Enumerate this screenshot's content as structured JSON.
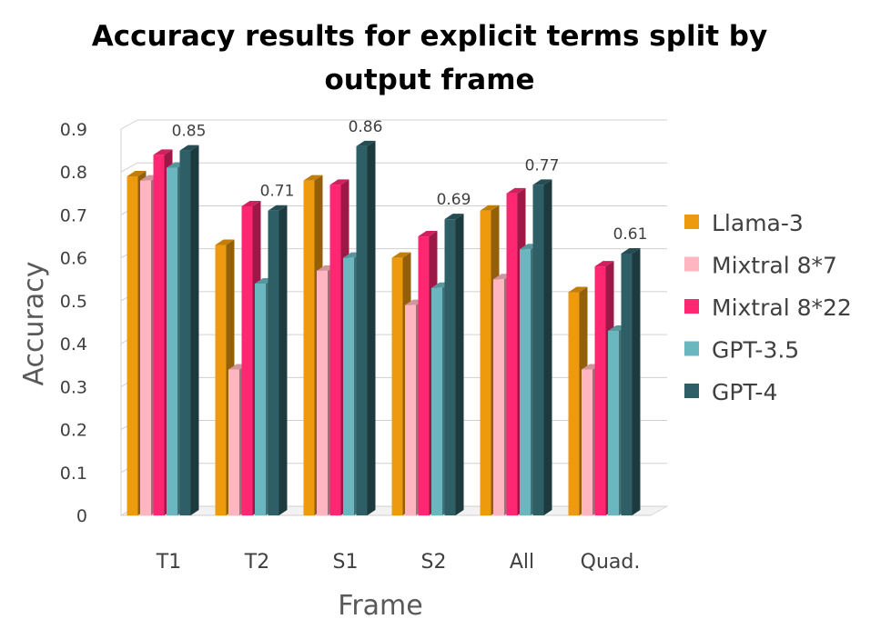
{
  "chart_data": {
    "type": "bar",
    "title_lines": [
      "Accuracy results for explicit terms split by",
      "output frame"
    ],
    "xlabel": "Frame",
    "ylabel": "Accuracy",
    "ylim": [
      0,
      0.9
    ],
    "yticks": [
      0,
      0.1,
      0.2,
      0.3,
      0.4,
      0.5,
      0.6,
      0.7,
      0.8,
      0.9
    ],
    "ytick_labels": [
      "0",
      "0.1",
      "0.2",
      "0.3",
      "0.4",
      "0.5",
      "0.6",
      "0.7",
      "0.8",
      "0.9"
    ],
    "grid": true,
    "legend_position": "right",
    "categories": [
      "T1",
      "T2",
      "S1",
      "S2",
      "All",
      "Quad."
    ],
    "series": [
      {
        "name": "Llama-3",
        "color": "#ED9A0E",
        "values": [
          0.79,
          0.63,
          0.78,
          0.6,
          0.71,
          0.52
        ]
      },
      {
        "name": "Mixtral 8*7",
        "color": "#FFB6C1",
        "values": [
          0.78,
          0.34,
          0.57,
          0.49,
          0.55,
          0.34
        ]
      },
      {
        "name": "Mixtral 8*22",
        "color": "#FF2772",
        "values": [
          0.84,
          0.72,
          0.77,
          0.65,
          0.75,
          0.58
        ]
      },
      {
        "name": "GPT-3.5",
        "color": "#6BB7C0",
        "values": [
          0.81,
          0.54,
          0.6,
          0.53,
          0.62,
          0.43
        ]
      },
      {
        "name": "GPT-4",
        "color": "#2E5E66",
        "values": [
          0.85,
          0.71,
          0.86,
          0.69,
          0.77,
          0.61
        ]
      }
    ],
    "data_labels": {
      "series": "GPT-4",
      "labels": [
        "0.85",
        "0.71",
        "0.86",
        "0.69",
        "0.77",
        "0.61"
      ]
    }
  }
}
